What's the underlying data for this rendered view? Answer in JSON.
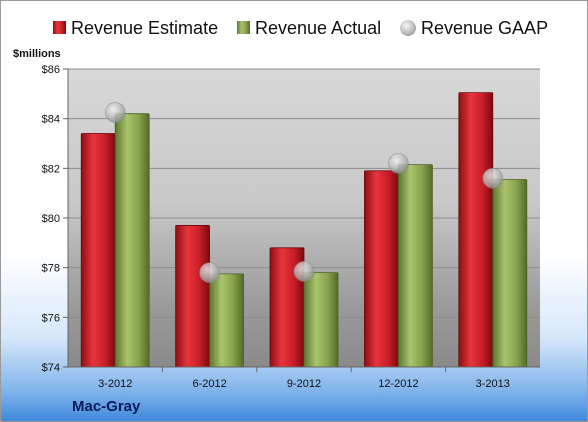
{
  "company_name": "Mac-Gray",
  "chart_data": {
    "type": "bar",
    "title": "",
    "xlabel": "",
    "ylabel": "$millions",
    "ylim": [
      74,
      86
    ],
    "yticks": [
      "$74",
      "$76",
      "$78",
      "$80",
      "$82",
      "$84",
      "$86"
    ],
    "ytick_values": [
      74,
      76,
      78,
      80,
      82,
      84,
      86
    ],
    "categories": [
      "3-2012",
      "6-2012",
      "9-2012",
      "12-2012",
      "3-2013"
    ],
    "grid": true,
    "legend_position": "top",
    "series": [
      {
        "name": "Revenue Estimate",
        "kind": "bar",
        "color": "#d0202a",
        "values": [
          83.4,
          79.7,
          78.8,
          81.9,
          85.05
        ]
      },
      {
        "name": "Revenue Actual",
        "kind": "bar",
        "color": "#8fab55",
        "values": [
          84.2,
          77.75,
          77.8,
          82.15,
          81.55
        ]
      },
      {
        "name": "Revenue GAAP",
        "kind": "marker",
        "color": "#b4b4b4",
        "values": [
          84.25,
          77.8,
          77.85,
          82.2,
          81.6
        ]
      }
    ]
  }
}
